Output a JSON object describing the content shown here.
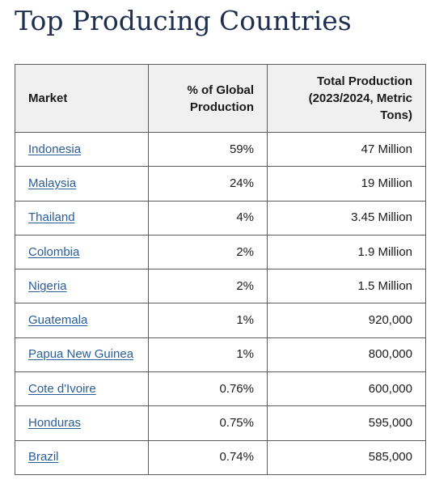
{
  "page": {
    "title": "Top Producing Countries"
  },
  "table": {
    "headers": {
      "market": "Market",
      "share": "% of Global Production",
      "total": "Total Production (2023/2024, Metric Tons)"
    },
    "rows": [
      {
        "market": "Indonesia",
        "share": "59%",
        "total": "47 Million"
      },
      {
        "market": "Malaysia",
        "share": "24%",
        "total": "19 Million"
      },
      {
        "market": "Thailand",
        "share": "4%",
        "total": "3.45 Million"
      },
      {
        "market": "Colombia",
        "share": "2%",
        "total": "1.9 Million"
      },
      {
        "market": "Nigeria",
        "share": "2%",
        "total": "1.5 Million"
      },
      {
        "market": "Guatemala",
        "share": "1%",
        "total": "920,000"
      },
      {
        "market": "Papua New Guinea",
        "share": "1%",
        "total": "800,000"
      },
      {
        "market": "Cote d'Ivoire",
        "share": "0.76%",
        "total": "600,000"
      },
      {
        "market": "Honduras",
        "share": "0.75%",
        "total": "595,000"
      },
      {
        "market": "Brazil",
        "share": "0.74%",
        "total": "585,000"
      }
    ]
  },
  "colors": {
    "title": "#1e2f4f",
    "link": "#2a5d97",
    "header_bg": "#f0f0f0",
    "border": "#5c5c5c"
  }
}
